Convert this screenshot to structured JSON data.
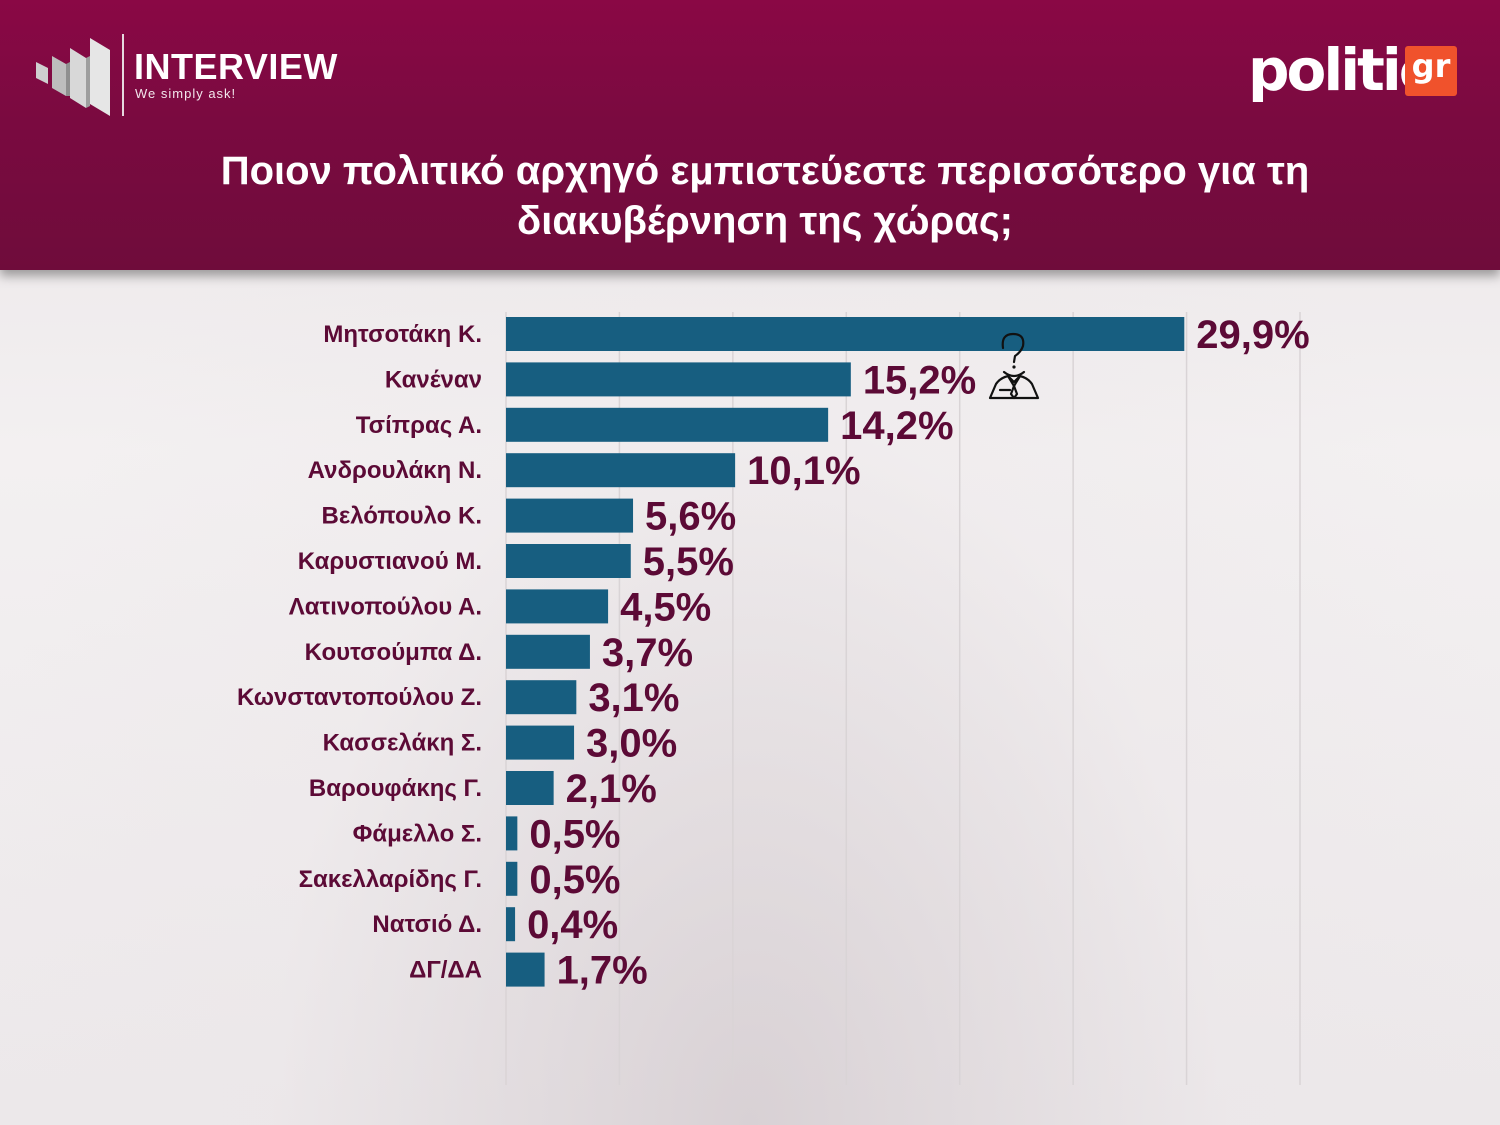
{
  "header": {
    "logo_left": {
      "name": "INTERVIEW",
      "tagline": "We simply ask!"
    },
    "logo_right": {
      "word": "politic",
      "suffix": "gr",
      "accent": "#f0522c"
    },
    "title": "Ποιον πολιτικό αρχηγό εμπιστεύεστε περισσότερο για τη διακυβέρνηση της χώρας;"
  },
  "colors": {
    "header_bg": "#7a0a40",
    "bar": "#175e80",
    "value_text": "#5c0a36",
    "category_text": "#5c0a36"
  },
  "chart_data": {
    "type": "bar",
    "orientation": "horizontal",
    "title": "Ποιον πολιτικό αρχηγό εμπιστεύεστε περισσότερο για τη διακυβέρνηση της χώρας;",
    "xlabel": "",
    "ylabel": "",
    "categories": [
      "Μητσοτάκη Κ.",
      "Κανέναν",
      "Τσίπρας Α.",
      "Ανδρουλάκη Ν.",
      "Βελόπουλο Κ.",
      "Καρυστιανού Μ.",
      "Λατινοπούλου Α.",
      "Κουτσούμπα Δ.",
      "Κωνσταντοπούλου Ζ.",
      "Κασσελάκη Σ.",
      "Βαρουφάκης Γ.",
      "Φάμελλο Σ.",
      "Σακελλαρίδης Γ.",
      "Νατσιό Δ.",
      "ΔΓ/ΔΑ"
    ],
    "values": [
      29.9,
      15.2,
      14.2,
      10.1,
      5.6,
      5.5,
      4.5,
      3.7,
      3.1,
      3.0,
      2.1,
      0.5,
      0.5,
      0.4,
      1.7
    ],
    "value_labels": [
      "29,9%",
      "15,2%",
      "14,2%",
      "10,1%",
      "5,6%",
      "5,5%",
      "4,5%",
      "3,7%",
      "3,1%",
      "3,0%",
      "2,1%",
      "0,5%",
      "0,5%",
      "0,4%",
      "1,7%"
    ],
    "xlim": [
      0,
      35
    ],
    "grid": true,
    "legend": "none",
    "annotation_icon": "question-person-icon"
  }
}
